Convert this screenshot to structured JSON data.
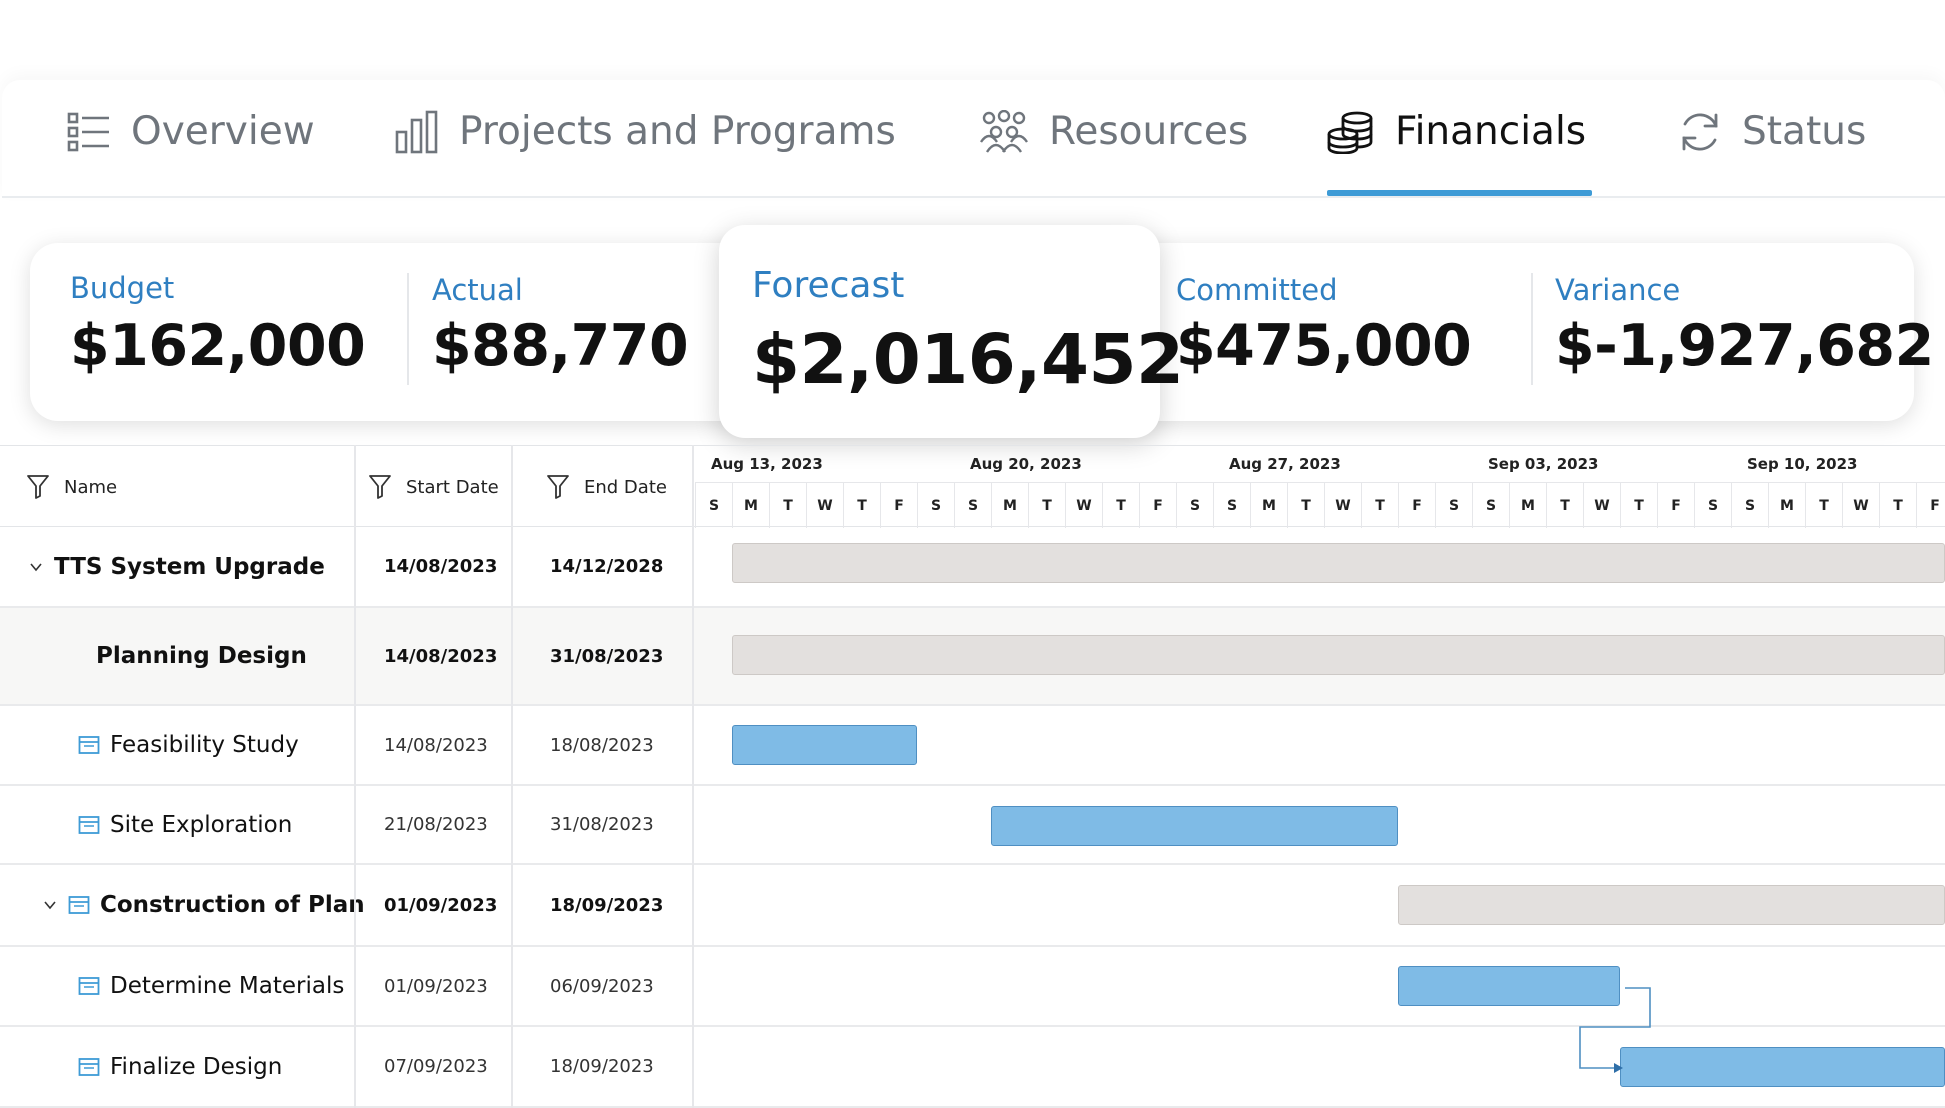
{
  "tabs": [
    {
      "label": "Overview",
      "icon": "list-icon",
      "active": false
    },
    {
      "label": "Projects and Programs",
      "icon": "bar-chart-icon",
      "active": false
    },
    {
      "label": "Resources",
      "icon": "people-group-icon",
      "active": false
    },
    {
      "label": "Financials",
      "icon": "coin-stack-icon",
      "active": true
    },
    {
      "label": "Status",
      "icon": "refresh-icon",
      "active": false
    }
  ],
  "kpis": {
    "budget": {
      "title": "Budget",
      "value": "$162,000"
    },
    "actual": {
      "title": "Actual",
      "value": "$88,770"
    },
    "forecast": {
      "title": "Forecast",
      "value": "$2,016,452"
    },
    "committed": {
      "title": "Committed",
      "value": "$475,000"
    },
    "variance": {
      "title": "Variance",
      "value": "$-1,927,682"
    }
  },
  "grid": {
    "columns": {
      "name": "Name",
      "start": "Start Date",
      "end": "End Date"
    },
    "weeks": [
      "Aug 13, 2023",
      "Aug 20, 2023",
      "Aug 27, 2023",
      "Sep 03, 2023",
      "Sep 10, 2023"
    ],
    "day_letters": [
      "S",
      "M",
      "T",
      "W",
      "T",
      "F",
      "S",
      "S",
      "M",
      "T",
      "W",
      "T",
      "F",
      "S",
      "S",
      "M",
      "T",
      "W",
      "T",
      "F",
      "S",
      "S",
      "M",
      "T",
      "W",
      "T",
      "F",
      "S",
      "S",
      "M",
      "T",
      "W",
      "T",
      "F"
    ],
    "rows": [
      {
        "name": "TTS System Upgrade",
        "start": "14/08/2023",
        "end": "14/12/2028",
        "type": "summary",
        "expanded": true
      },
      {
        "name": "Planning Design",
        "start": "14/08/2023",
        "end": "31/08/2023",
        "type": "summary"
      },
      {
        "name": "Feasibility Study",
        "start": "14/08/2023",
        "end": "18/08/2023",
        "type": "task"
      },
      {
        "name": "Site Exploration",
        "start": "21/08/2023",
        "end": "31/08/2023",
        "type": "task"
      },
      {
        "name": "Construction of Plan",
        "start": "01/09/2023",
        "end": "18/09/2023",
        "type": "summary",
        "expanded": true
      },
      {
        "name": "Determine Materials",
        "start": "01/09/2023",
        "end": "06/09/2023",
        "type": "task"
      },
      {
        "name": "Finalize Design",
        "start": "07/09/2023",
        "end": "18/09/2023",
        "type": "task"
      }
    ]
  },
  "colors": {
    "accent": "#3e9bd6",
    "kpi_title": "#2f7fc1",
    "task_bar": "#7fbbe6",
    "summary_bar": "#e3e0de"
  }
}
